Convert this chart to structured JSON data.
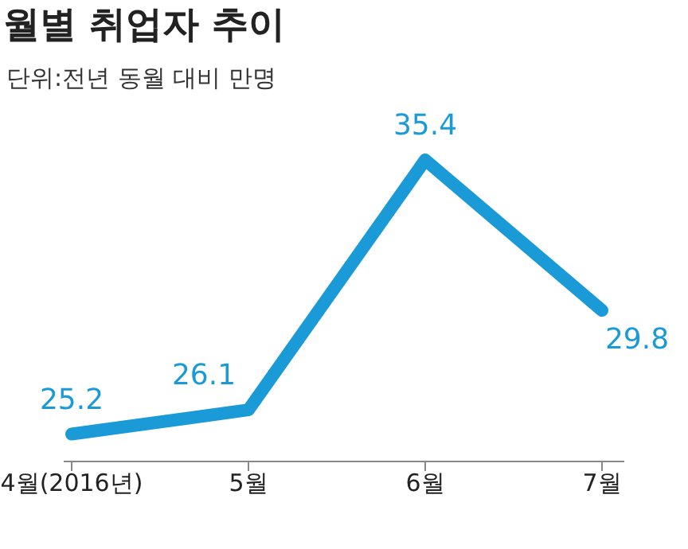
{
  "chart_data": {
    "type": "line",
    "title": "월별 취업자 추이",
    "subtitle": "단위:전년 동월 대비 만명",
    "categories": [
      "4월(2016년)",
      "5월",
      "6월",
      "7월"
    ],
    "series": [
      {
        "color": "#1a9ad6",
        "values": [
          25.2,
          26.1,
          35.4,
          29.8
        ]
      }
    ],
    "data_labels": true,
    "marker": "none",
    "grid": false,
    "legend": false,
    "tick_labels": "x"
  }
}
